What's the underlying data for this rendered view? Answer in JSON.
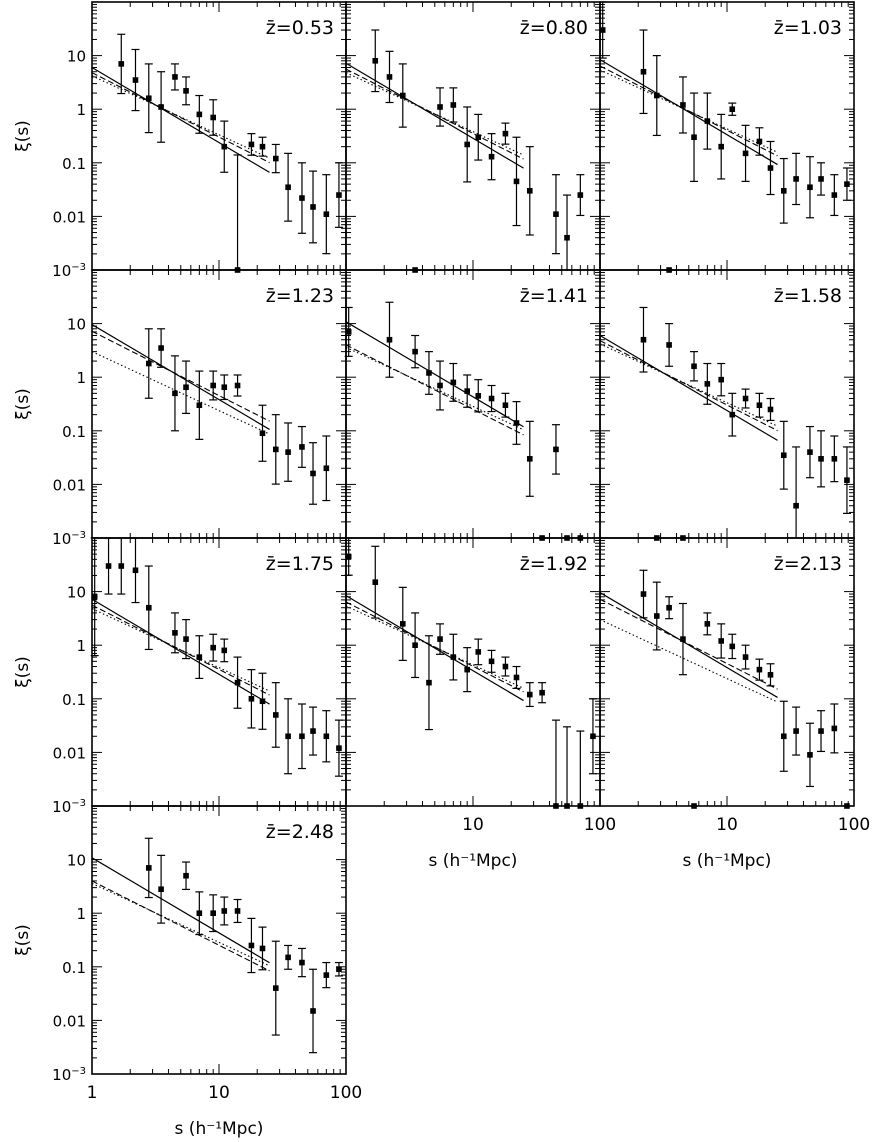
{
  "chart_data": {
    "type": "scatter",
    "description_axes": {
      "x_scale": "log",
      "y_scale": "log",
      "xlim": [
        1,
        100
      ],
      "ylim": [
        0.001,
        100
      ]
    },
    "y_tick_labels": [
      "10",
      "1",
      "0.1",
      "0.01",
      "10⁻³"
    ],
    "x_tick_labels": [
      "1",
      "10",
      "100"
    ],
    "ylabel": "ξ(s)",
    "xlabel": "s (h⁻¹Mpc)",
    "panels": [
      {
        "label": "z̄=0.53",
        "s": [
          1.7,
          2.2,
          2.8,
          3.5,
          4.5,
          5.5,
          7,
          9,
          11,
          14,
          18,
          22,
          28,
          35,
          45,
          55,
          70,
          88
        ],
        "xi": [
          7,
          3.5,
          1.6,
          1.1,
          4,
          2.2,
          0.8,
          0.7,
          0.2,
          0.001,
          0.22,
          0.2,
          0.12,
          0.035,
          0.022,
          0.015,
          0.011,
          0.025
        ],
        "err_hi": [
          25,
          13,
          7,
          5,
          7,
          4,
          1.8,
          1.5,
          0.6,
          0.14,
          0.35,
          0.3,
          0.22,
          0.15,
          0.1,
          0.07,
          0.06,
          0.1
        ]
      },
      {
        "label": "z̄=0.80",
        "s": [
          1.7,
          2.2,
          2.8,
          3.5,
          5.5,
          7,
          9,
          11,
          14,
          18,
          22,
          28,
          45,
          55,
          70
        ],
        "xi": [
          8,
          4,
          1.8,
          0.001,
          1.1,
          1.2,
          0.22,
          0.3,
          0.13,
          0.35,
          0.045,
          0.03,
          0.011,
          0.004,
          0.025
        ],
        "err_hi": [
          30,
          12,
          7,
          0.001,
          2.5,
          2.5,
          1.1,
          0.8,
          0.35,
          0.55,
          0.3,
          0.2,
          0.06,
          0.025,
          0.06
        ]
      },
      {
        "label": "z̄=1.03",
        "s": [
          1.05,
          2.2,
          2.8,
          3.5,
          4.5,
          5.5,
          7,
          9,
          11,
          14,
          18,
          22,
          28,
          35,
          45,
          55,
          70,
          88
        ],
        "xi": [
          30,
          5,
          1.8,
          0.001,
          1.2,
          0.3,
          0.6,
          0.2,
          1.0,
          0.15,
          0.25,
          0.08,
          0.03,
          0.05,
          0.035,
          0.05,
          0.025,
          0.04
        ],
        "err_hi": [
          100,
          30,
          10,
          0.001,
          4,
          2,
          2,
          0.8,
          1.3,
          0.5,
          0.45,
          0.25,
          0.12,
          0.15,
          0.13,
          0.1,
          0.06,
          0.08
        ]
      },
      {
        "label": "z̄=1.23",
        "s": [
          2.8,
          3.5,
          4.5,
          5.5,
          7,
          9,
          11,
          14,
          22,
          28,
          35,
          45,
          55,
          70
        ],
        "xi": [
          1.8,
          3.5,
          0.5,
          0.65,
          0.3,
          0.7,
          0.65,
          0.7,
          0.09,
          0.045,
          0.04,
          0.05,
          0.016,
          0.02
        ],
        "err_hi": [
          8,
          8,
          2.5,
          2,
          1.3,
          1.3,
          1.1,
          1.1,
          0.3,
          0.2,
          0.14,
          0.12,
          0.06,
          0.08
        ]
      },
      {
        "label": "z̄=1.41",
        "s": [
          1.05,
          2.2,
          3.5,
          4.5,
          5.5,
          7,
          9,
          11,
          14,
          18,
          22,
          28,
          35,
          45,
          55,
          70
        ],
        "xi": [
          7,
          5,
          3,
          1.2,
          0.7,
          0.8,
          0.55,
          0.45,
          0.4,
          0.3,
          0.14,
          0.03,
          0.001,
          0.045,
          0.001,
          0.001
        ],
        "err_hi": [
          20,
          25,
          6,
          3,
          2,
          1.8,
          1.1,
          0.9,
          0.7,
          0.5,
          0.35,
          0.15,
          0.001,
          0.13,
          0.001,
          0.001
        ]
      },
      {
        "label": "z̄=1.58",
        "s": [
          2.2,
          2.8,
          3.5,
          4.5,
          5.5,
          7,
          9,
          11,
          14,
          18,
          22,
          28,
          35,
          45,
          55,
          70,
          88
        ],
        "xi": [
          5,
          0.001,
          4,
          0.001,
          1.6,
          0.75,
          0.9,
          0.2,
          0.4,
          0.3,
          0.25,
          0.035,
          0.004,
          0.04,
          0.03,
          0.03,
          0.012
        ],
        "err_hi": [
          20,
          0.001,
          10,
          0.001,
          3,
          1.8,
          1.8,
          0.5,
          0.6,
          0.5,
          0.4,
          0.15,
          0.05,
          0.12,
          0.1,
          0.08,
          0.05
        ]
      },
      {
        "label": "z̄=1.75",
        "s": [
          1.05,
          1.35,
          1.7,
          2.2,
          2.8,
          4.5,
          5.5,
          7,
          9,
          11,
          14,
          18,
          22,
          28,
          35,
          45,
          55,
          70,
          88
        ],
        "xi": [
          8,
          30,
          30,
          25,
          5,
          1.7,
          1.3,
          0.6,
          0.9,
          0.8,
          0.2,
          0.1,
          0.09,
          0.05,
          0.02,
          0.02,
          0.025,
          0.02,
          0.012
        ],
        "err_hi": [
          100,
          100,
          100,
          100,
          30,
          4,
          3,
          1.5,
          1.6,
          1.3,
          0.6,
          0.35,
          0.3,
          0.2,
          0.1,
          0.08,
          0.07,
          0.06,
          0.04
        ]
      },
      {
        "label": "z̄=1.92",
        "s": [
          1.05,
          1.7,
          2.8,
          3.5,
          4.5,
          5.5,
          7,
          9,
          11,
          14,
          18,
          22,
          28,
          35,
          45,
          55,
          70,
          88
        ],
        "xi": [
          45,
          15,
          2.5,
          1.0,
          0.2,
          1.3,
          0.6,
          0.35,
          0.75,
          0.5,
          0.4,
          0.25,
          0.12,
          0.13,
          0.001,
          0.001,
          0.001,
          0.02
        ],
        "err_hi": [
          100,
          70,
          12,
          4,
          1.5,
          2.5,
          1.6,
          0.9,
          1.3,
          0.8,
          0.6,
          0.4,
          0.2,
          0.2,
          0.04,
          0.03,
          0.025,
          0.1
        ]
      },
      {
        "label": "z̄=2.13",
        "s": [
          2.2,
          2.8,
          3.5,
          4.5,
          5.5,
          7,
          9,
          11,
          14,
          18,
          22,
          28,
          35,
          45,
          55,
          70,
          88
        ],
        "xi": [
          9,
          3.5,
          5,
          1.3,
          0.001,
          2.5,
          1.2,
          0.95,
          0.6,
          0.35,
          0.28,
          0.02,
          0.025,
          0.009,
          0.025,
          0.028,
          0.001
        ],
        "err_hi": [
          25,
          15,
          8,
          6,
          0.001,
          4,
          2.5,
          1.6,
          1.0,
          0.55,
          0.45,
          0.09,
          0.07,
          0.035,
          0.06,
          0.08,
          0.001
        ]
      },
      {
        "label": "z̄=2.48",
        "s": [
          2.8,
          3.5,
          5.5,
          7,
          9,
          11,
          14,
          18,
          22,
          28,
          35,
          45,
          55,
          70,
          88
        ],
        "xi": [
          7,
          2.8,
          5,
          1.0,
          1.0,
          1.1,
          1.1,
          0.25,
          0.22,
          0.04,
          0.15,
          0.12,
          0.015,
          0.07,
          0.09
        ],
        "err_hi": [
          25,
          12,
          9,
          2.5,
          2.2,
          2.0,
          1.8,
          0.8,
          0.55,
          0.3,
          0.25,
          0.22,
          0.09,
          0.12,
          0.12
        ]
      }
    ]
  }
}
